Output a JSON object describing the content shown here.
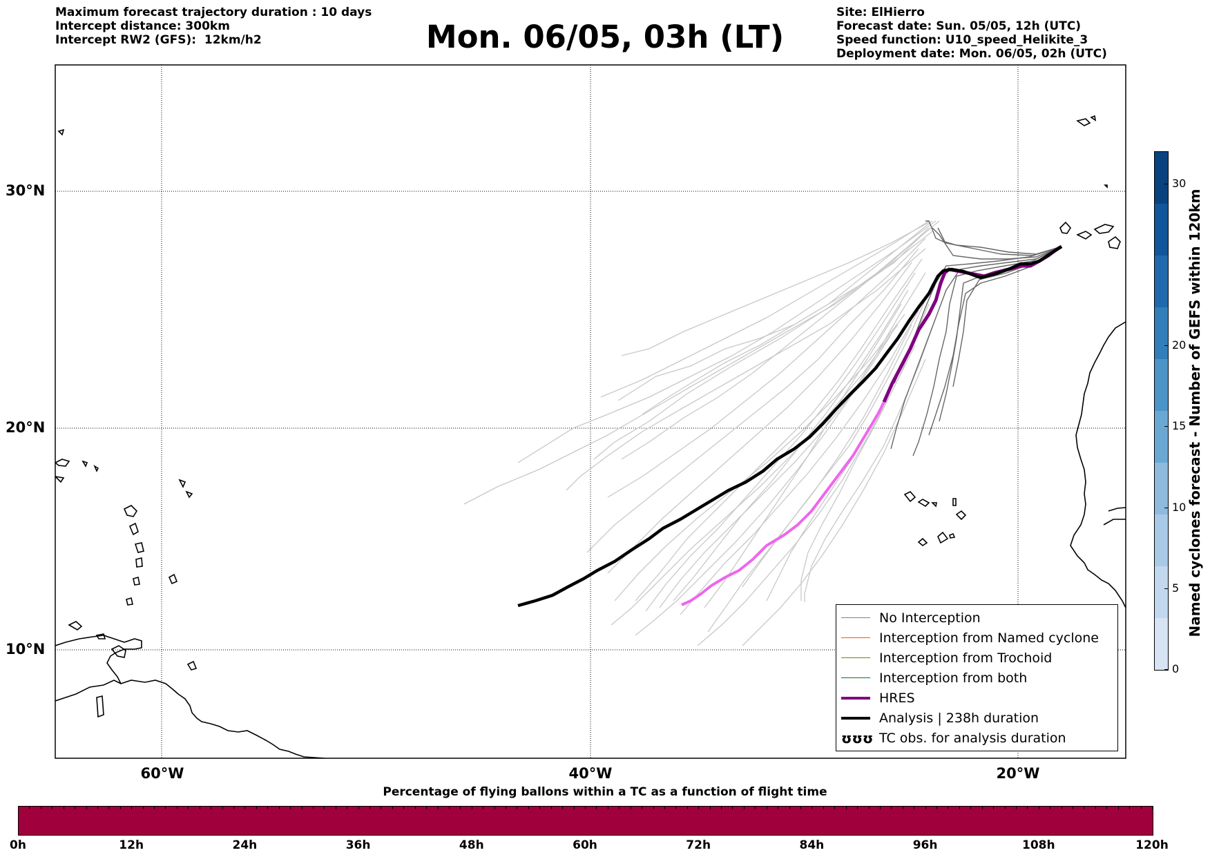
{
  "header": {
    "left_lines": [
      "Maximum forecast trajectory duration : 10 days",
      "Intercept distance: 300km",
      "Intercept RW2 (GFS):  12km/h2"
    ],
    "title": "Mon. 06/05, 03h (LT)",
    "right_lines": [
      "Site: ElHierro",
      "Forecast date: Sun. 05/05, 12h (UTC)",
      "Speed function: U10_speed_Helikite_3",
      "Deployment date: Mon. 06/05, 02h (UTC)"
    ]
  },
  "map": {
    "lat_labels": [
      "30°N",
      "20°N",
      "10°N"
    ],
    "lon_labels": [
      "60°W",
      "40°W",
      "20°W"
    ],
    "lat_range": [
      5.5,
      35.5
    ],
    "lon_range": [
      -65,
      -15
    ]
  },
  "legend": {
    "items": [
      {
        "label": "No Interception",
        "color": "#808080",
        "style": "thin"
      },
      {
        "label": "Interception from Named cyclone",
        "color": "#ff5500",
        "style": "thin"
      },
      {
        "label": "Interception from Trochoid",
        "color": "#808000",
        "style": "thin"
      },
      {
        "label": "Interception from both",
        "color": "#008000",
        "style": "thin"
      },
      {
        "label": "HRES",
        "color": "#800080",
        "style": "thick"
      },
      {
        "label": "Analysis | 238h duration",
        "color": "#000000",
        "style": "thick"
      },
      {
        "label": "TC obs. for analysis duration",
        "color": "#000000",
        "style": "symbol",
        "symbol": "ʊʊʊ"
      }
    ]
  },
  "colorbar_right": {
    "label": "Named cyclones forecast - Number of GEFS within 120km",
    "ticks": [
      "0",
      "5",
      "10",
      "15",
      "20",
      "30"
    ],
    "tick_values": [
      0,
      5,
      10,
      15,
      20,
      30
    ],
    "max": 32,
    "colors": [
      "#d6e4f4",
      "#c2d8ee",
      "#a8cae6",
      "#8ebade",
      "#6aa8d4",
      "#4c94c8",
      "#327ebb",
      "#1f69ae",
      "#11559a",
      "#08427f"
    ]
  },
  "colorbar_bottom": {
    "title": "Percentage of flying ballons within a TC as a function of flight time",
    "ticks": [
      "0h",
      "12h",
      "24h",
      "36h",
      "48h",
      "60h",
      "72h",
      "84h",
      "96h",
      "108h",
      "120h"
    ],
    "color": "#a0003c"
  },
  "trajectories": {
    "hres_color": "#800080",
    "hres_light_color": "#ee66ee",
    "analysis_color": "#000000",
    "ensemble_color": "#666666",
    "far_color": "#c8c8c8"
  }
}
